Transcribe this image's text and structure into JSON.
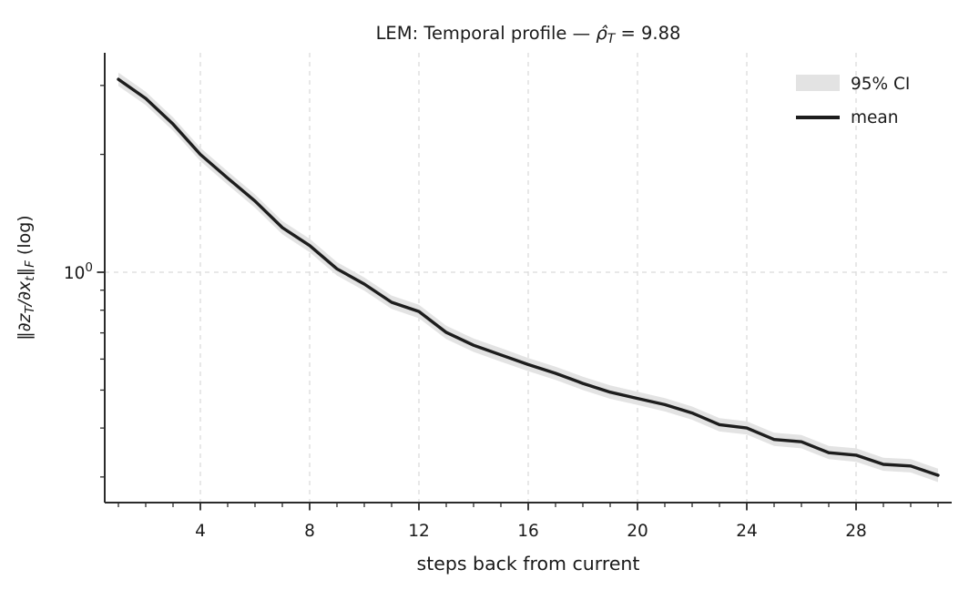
{
  "chart_data": {
    "type": "line",
    "title_segments": [
      {
        "t": "LEM: Temporal profile — ",
        "i": false,
        "sub": false
      },
      {
        "t": "ρ̂",
        "i": true,
        "sub": false
      },
      {
        "t": "T",
        "i": true,
        "sub": true
      },
      {
        "t": " = 9.88",
        "i": false,
        "sub": false
      }
    ],
    "title_plain": "LEM: Temporal profile — ρ̂_T = 9.88",
    "xlabel": "steps back from current",
    "ylabel_segments": [
      {
        "t": "‖",
        "i": false,
        "sub": false
      },
      {
        "t": "∂z",
        "i": true,
        "sub": false
      },
      {
        "t": "T",
        "i": true,
        "sub": true
      },
      {
        "t": "/",
        "i": true,
        "sub": false
      },
      {
        "t": "∂x",
        "i": true,
        "sub": false
      },
      {
        "t": "t",
        "i": true,
        "sub": true
      },
      {
        "t": "‖",
        "i": false,
        "sub": false
      },
      {
        "t": "F",
        "i": true,
        "sub": true
      },
      {
        "t": " (log)",
        "i": false,
        "sub": false
      }
    ],
    "ylabel_plain": "‖∂z_T/∂x_t‖_F (log)",
    "yscale": "log",
    "xlim": [
      0.5,
      31.5
    ],
    "ylim": [
      0.258,
      3.64
    ],
    "grid": {
      "on": true,
      "style": "dashed",
      "x_values": [
        4,
        8,
        12,
        16,
        20,
        24,
        28
      ],
      "y_values": [
        1
      ]
    },
    "x": [
      1,
      2,
      3,
      4,
      5,
      6,
      7,
      8,
      9,
      10,
      11,
      12,
      13,
      14,
      15,
      16,
      17,
      18,
      19,
      20,
      21,
      22,
      23,
      24,
      25,
      26,
      27,
      28,
      29,
      30,
      31
    ],
    "series": [
      {
        "name": "mean",
        "values": [
          3.11,
          2.78,
          2.39,
          2.0,
          1.74,
          1.52,
          1.3,
          1.17,
          1.02,
          0.933,
          0.838,
          0.794,
          0.702,
          0.651,
          0.615,
          0.581,
          0.552,
          0.52,
          0.494,
          0.476,
          0.459,
          0.437,
          0.408,
          0.4,
          0.374,
          0.369,
          0.346,
          0.341,
          0.323,
          0.32,
          0.303
        ]
      }
    ],
    "band": {
      "name": "95% CI",
      "upper": [
        3.234,
        2.891,
        2.486,
        2.08,
        1.81,
        1.581,
        1.352,
        1.217,
        1.061,
        0.97,
        0.872,
        0.826,
        0.73,
        0.677,
        0.64,
        0.604,
        0.574,
        0.541,
        0.514,
        0.495,
        0.477,
        0.454,
        0.424,
        0.416,
        0.389,
        0.384,
        0.36,
        0.355,
        0.336,
        0.333,
        0.315
      ],
      "lower": [
        2.99,
        2.673,
        2.298,
        1.923,
        1.673,
        1.462,
        1.25,
        1.125,
        0.981,
        0.897,
        0.806,
        0.763,
        0.675,
        0.626,
        0.591,
        0.559,
        0.531,
        0.5,
        0.475,
        0.458,
        0.441,
        0.42,
        0.392,
        0.385,
        0.36,
        0.355,
        0.333,
        0.328,
        0.311,
        0.308,
        0.291
      ]
    },
    "x_major_ticks": [
      4,
      8,
      12,
      16,
      20,
      24,
      28
    ],
    "x_minor_ticks": [
      1,
      2,
      3,
      5,
      6,
      7,
      9,
      10,
      11,
      13,
      14,
      15,
      17,
      18,
      19,
      21,
      22,
      23,
      25,
      26,
      27,
      29,
      30,
      31
    ],
    "y_major_tick": {
      "value": 1,
      "base": "10",
      "exp": "0"
    },
    "y_minor_ticks": [
      3,
      2,
      0.9,
      0.8,
      0.7,
      0.6,
      0.5,
      0.4,
      0.3
    ],
    "legend": [
      {
        "label": "95% CI",
        "swatch": "band"
      },
      {
        "label": "mean",
        "swatch": "line"
      }
    ],
    "legend_position": "upper right",
    "colors": {
      "line": "#1d1d1d",
      "band": "#e3e3e3",
      "grid": "#d9d9d9",
      "spine": "#2b2b2b",
      "text": "#1a1a1a",
      "background": "#ffffff"
    }
  }
}
